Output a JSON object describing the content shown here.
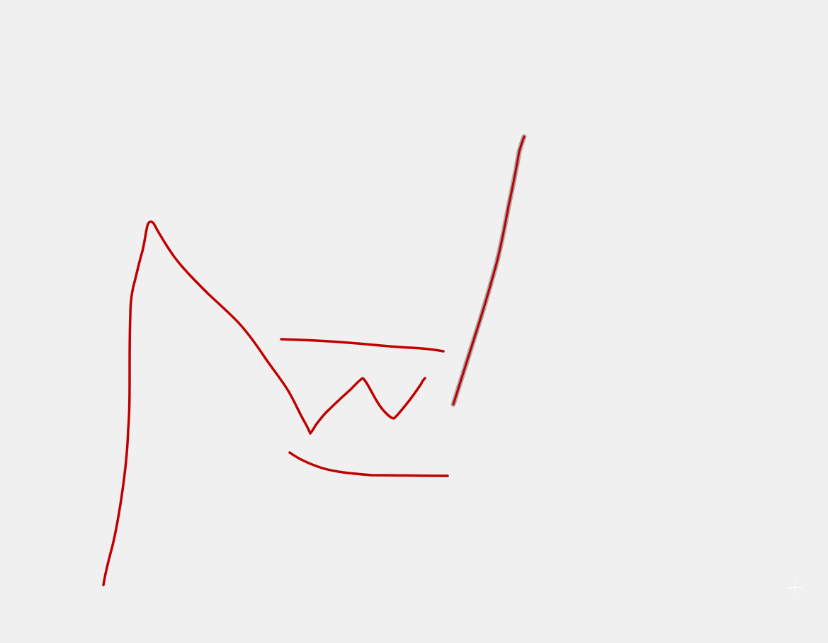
{
  "canvas": {
    "background_color": "#f0f0f0",
    "ink_color": "#c00000",
    "selection_color": "#a8a8a8",
    "selected_stroke": "stroke-5",
    "strokes": [
      {
        "id": "stroke-1",
        "shape": "long-peak-descending"
      },
      {
        "id": "stroke-2",
        "shape": "upper-horizontal"
      },
      {
        "id": "stroke-3",
        "shape": "zigzag"
      },
      {
        "id": "stroke-4",
        "shape": "lower-curve"
      },
      {
        "id": "stroke-5",
        "shape": "diagonal-line",
        "selected": true
      }
    ]
  },
  "cursor": {
    "icon": "crosshair-icon"
  }
}
